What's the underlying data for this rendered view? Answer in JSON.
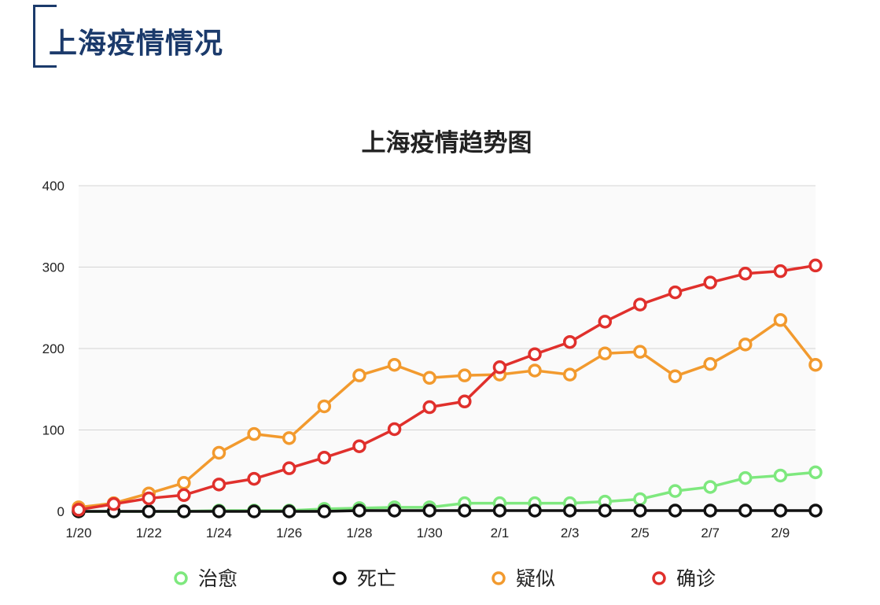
{
  "header": {
    "title": "上海疫情情况"
  },
  "colors": {
    "title_text": "#1b3a6b",
    "治愈": "#7ee87e",
    "死亡": "#111111",
    "疑似": "#f29a2e",
    "确诊": "#e0302c"
  },
  "chart_data": {
    "type": "line",
    "title": "上海疫情趋势图",
    "xlabel": "",
    "ylabel": "",
    "ylim": [
      0,
      400
    ],
    "yticks": [
      0,
      100,
      200,
      300,
      400
    ],
    "grid": true,
    "legend_position": "bottom",
    "categories": [
      "1/20",
      "1/21",
      "1/22",
      "1/23",
      "1/24",
      "1/25",
      "1/26",
      "1/27",
      "1/28",
      "1/29",
      "1/30",
      "1/31",
      "2/1",
      "2/2",
      "2/3",
      "2/4",
      "2/5",
      "2/6",
      "2/7",
      "2/8",
      "2/9",
      "2/10"
    ],
    "xtick_labels": [
      "1/20",
      "1/22",
      "1/24",
      "1/26",
      "1/28",
      "1/30",
      "2/1",
      "2/3",
      "2/5",
      "2/7",
      "2/9"
    ],
    "series": [
      {
        "name": "治愈",
        "color": "#7ee87e",
        "values": [
          0,
          0,
          0,
          0,
          1,
          1,
          1,
          3,
          4,
          5,
          5,
          10,
          10,
          10,
          10,
          12,
          15,
          25,
          30,
          41,
          44,
          48
        ]
      },
      {
        "name": "死亡",
        "color": "#111111",
        "values": [
          0,
          0,
          0,
          0,
          0,
          0,
          0,
          0,
          1,
          1,
          1,
          1,
          1,
          1,
          1,
          1,
          1,
          1,
          1,
          1,
          1,
          1
        ]
      },
      {
        "name": "疑似",
        "color": "#f29a2e",
        "values": [
          5,
          10,
          22,
          35,
          72,
          95,
          90,
          129,
          167,
          180,
          164,
          167,
          168,
          173,
          168,
          194,
          196,
          166,
          181,
          205,
          235,
          180
        ]
      },
      {
        "name": "确诊",
        "color": "#e0302c",
        "values": [
          2,
          9,
          16,
          20,
          33,
          40,
          53,
          66,
          80,
          101,
          128,
          135,
          177,
          193,
          208,
          233,
          254,
          269,
          281,
          292,
          295,
          302
        ]
      }
    ]
  }
}
